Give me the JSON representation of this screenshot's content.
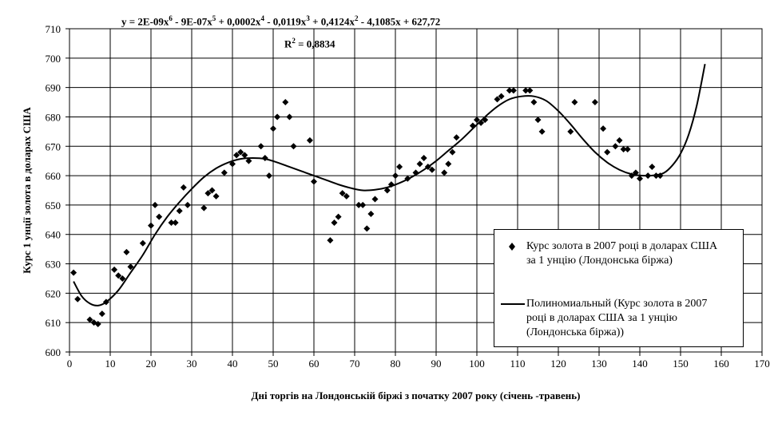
{
  "chart_data": {
    "type": "scatter",
    "title": "",
    "xlabel": "Дні торгів на Лондонській біржі з початку 2007 року (січень -травень)",
    "ylabel": "Курс 1 унції золота в доларах США",
    "xlim": [
      0,
      170
    ],
    "ylim": [
      600,
      710
    ],
    "xticks": [
      0,
      10,
      20,
      30,
      40,
      50,
      60,
      70,
      80,
      90,
      100,
      110,
      120,
      130,
      140,
      150,
      160,
      170
    ],
    "yticks": [
      600,
      610,
      620,
      630,
      640,
      650,
      660,
      670,
      680,
      690,
      700,
      710
    ],
    "grid": true,
    "legend_position": "bottom-right",
    "equation_parts": [
      "y = 2E-09x",
      "6",
      " - 9E-07x",
      "5",
      " + 0,0002x",
      "4",
      " - 0,0119x",
      "3",
      " + 0,4124x",
      "2",
      " - 4,1085x + 627,72"
    ],
    "r2_parts": [
      "R",
      "2",
      " = 0,8834"
    ],
    "trendline": {
      "name": "Полиномиальный (Курс золота в 2007 році в доларах США за 1 унцію (Лондонська біржа))",
      "coefficients": [
        627.72,
        -4.1085,
        0.4124,
        -0.0119,
        0.0002,
        -9e-07,
        2e-09
      ],
      "x_range": [
        1,
        156
      ],
      "displayed_knots": [
        [
          1,
          624
        ],
        [
          3,
          619
        ],
        [
          5,
          616.5
        ],
        [
          7,
          615.8
        ],
        [
          9,
          617
        ],
        [
          12,
          621
        ],
        [
          15,
          627
        ],
        [
          18,
          633
        ],
        [
          21,
          640
        ],
        [
          24,
          646
        ],
        [
          27,
          651
        ],
        [
          30,
          655.5
        ],
        [
          33,
          659.5
        ],
        [
          36,
          662.5
        ],
        [
          39,
          664.5
        ],
        [
          42,
          665.7
        ],
        [
          45,
          666
        ],
        [
          48,
          665.7
        ],
        [
          51,
          664.5
        ],
        [
          54,
          663
        ],
        [
          57,
          661.5
        ],
        [
          60,
          660
        ],
        [
          63,
          658.5
        ],
        [
          66,
          657
        ],
        [
          69,
          655.8
        ],
        [
          72,
          655
        ],
        [
          75,
          655.2
        ],
        [
          78,
          656
        ],
        [
          81,
          657.5
        ],
        [
          84,
          659.5
        ],
        [
          87,
          662
        ],
        [
          90,
          665
        ],
        [
          93,
          668.5
        ],
        [
          96,
          672
        ],
        [
          99,
          676
        ],
        [
          102,
          680
        ],
        [
          105,
          683.5
        ],
        [
          108,
          686
        ],
        [
          111,
          687
        ],
        [
          114,
          687
        ],
        [
          117,
          685.5
        ],
        [
          120,
          682
        ],
        [
          123,
          677.5
        ],
        [
          126,
          672.5
        ],
        [
          129,
          668
        ],
        [
          132,
          664.5
        ],
        [
          135,
          662
        ],
        [
          138,
          660.5
        ],
        [
          141,
          660
        ],
        [
          144,
          660.2
        ],
        [
          146,
          661
        ],
        [
          148,
          663.5
        ],
        [
          150,
          667.5
        ],
        [
          152,
          674
        ],
        [
          154,
          684
        ],
        [
          156,
          698
        ]
      ]
    },
    "series": [
      {
        "name": "Курс золота в 2007 році в доларах США за 1 унцію (Лондонська біржа)",
        "points": [
          [
            1,
            627
          ],
          [
            2,
            618
          ],
          [
            5,
            611
          ],
          [
            6,
            610
          ],
          [
            7,
            609.5
          ],
          [
            8,
            613
          ],
          [
            9,
            617
          ],
          [
            11,
            628
          ],
          [
            12,
            626
          ],
          [
            13,
            625
          ],
          [
            14,
            634
          ],
          [
            15,
            629
          ],
          [
            18,
            637
          ],
          [
            20,
            643
          ],
          [
            21,
            650
          ],
          [
            22,
            646
          ],
          [
            25,
            644
          ],
          [
            26,
            644
          ],
          [
            27,
            648
          ],
          [
            28,
            656
          ],
          [
            29,
            650
          ],
          [
            33,
            649
          ],
          [
            34,
            654
          ],
          [
            35,
            655
          ],
          [
            36,
            653
          ],
          [
            38,
            661
          ],
          [
            40,
            664
          ],
          [
            41,
            667
          ],
          [
            42,
            668
          ],
          [
            43,
            667
          ],
          [
            44,
            665
          ],
          [
            47,
            670
          ],
          [
            48,
            666
          ],
          [
            49,
            660
          ],
          [
            50,
            676
          ],
          [
            51,
            680
          ],
          [
            53,
            685
          ],
          [
            54,
            680
          ],
          [
            55,
            670
          ],
          [
            59,
            672
          ],
          [
            60,
            658
          ],
          [
            64,
            638
          ],
          [
            65,
            644
          ],
          [
            66,
            646
          ],
          [
            67,
            654
          ],
          [
            68,
            653
          ],
          [
            71,
            650
          ],
          [
            72,
            650
          ],
          [
            73,
            642
          ],
          [
            74,
            647
          ],
          [
            75,
            652
          ],
          [
            78,
            655
          ],
          [
            79,
            657
          ],
          [
            80,
            660
          ],
          [
            81,
            663
          ],
          [
            83,
            659
          ],
          [
            85,
            661
          ],
          [
            86,
            664
          ],
          [
            87,
            666
          ],
          [
            88,
            663
          ],
          [
            89,
            662
          ],
          [
            92,
            661
          ],
          [
            93,
            664
          ],
          [
            94,
            668
          ],
          [
            95,
            673
          ],
          [
            99,
            677
          ],
          [
            100,
            679
          ],
          [
            101,
            678
          ],
          [
            102,
            679
          ],
          [
            105,
            686
          ],
          [
            106,
            687
          ],
          [
            108,
            689
          ],
          [
            109,
            689
          ],
          [
            112,
            689
          ],
          [
            113,
            689
          ],
          [
            114,
            685
          ],
          [
            115,
            679
          ],
          [
            116,
            675
          ],
          [
            123,
            675
          ],
          [
            124,
            685
          ],
          [
            129,
            685
          ],
          [
            131,
            676
          ],
          [
            132,
            668
          ],
          [
            134,
            670
          ],
          [
            135,
            672
          ],
          [
            136,
            669
          ],
          [
            137,
            669
          ],
          [
            138,
            660
          ],
          [
            139,
            661
          ],
          [
            140,
            659
          ],
          [
            142,
            660
          ],
          [
            143,
            663
          ],
          [
            144,
            660
          ],
          [
            145,
            660
          ]
        ]
      }
    ]
  },
  "legend": {
    "series_label_line1": "Курс золота в 2007 році в доларах США",
    "series_label_line2": "за 1 унцію (Лондонська біржа)",
    "trend_label_line1": "Полиномиальный (Курс золота в 2007",
    "trend_label_line2": "році в доларах США за 1 унцію",
    "trend_label_line3": "(Лондонська біржа))"
  },
  "colors": {
    "marker": "#000000",
    "line": "#000000",
    "grid": "#000000",
    "background": "#ffffff"
  }
}
